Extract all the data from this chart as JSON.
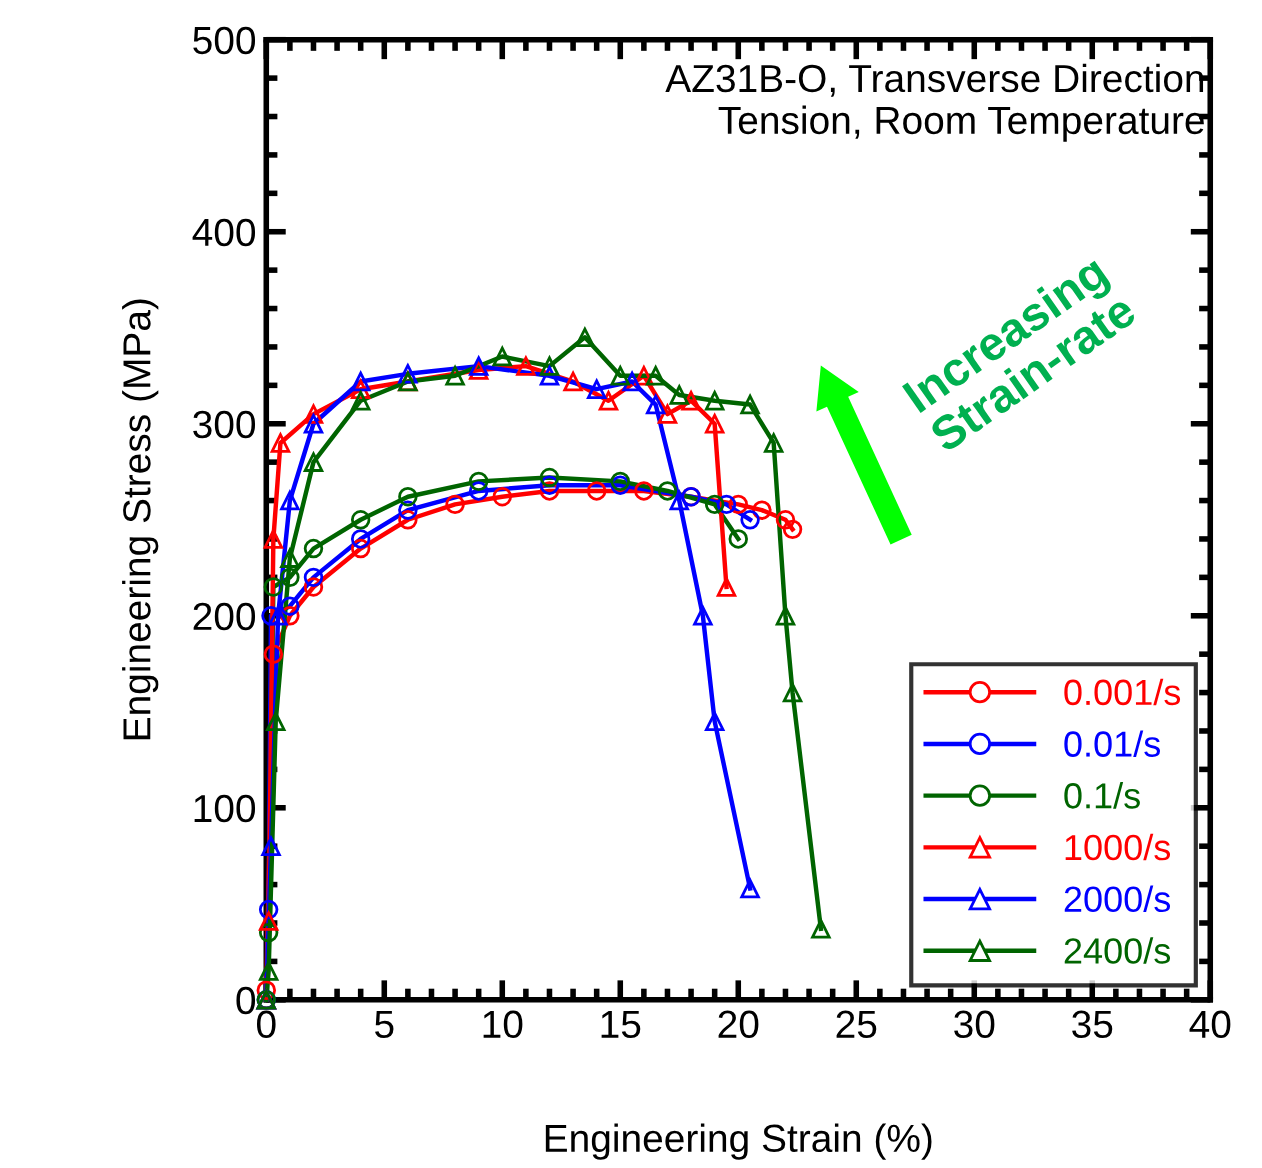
{
  "chart_data": {
    "type": "line",
    "xlabel": "Engineering Strain (%)",
    "ylabel": "Engineering Stress (MPa)",
    "xlim": [
      0,
      40
    ],
    "ylim": [
      0,
      500
    ],
    "xticks": [
      0,
      5,
      10,
      15,
      20,
      25,
      30,
      35,
      40
    ],
    "yticks": [
      0,
      100,
      200,
      300,
      400,
      500
    ],
    "grid": false,
    "legend": "bottom right",
    "annotations": [
      "AZ31B-O, Transverse Direction\nTension, Room Temperature",
      "Increasing\nStrain-rate"
    ],
    "series": [
      {
        "name": "0.001/s",
        "color": "#ff0000",
        "marker": "circle",
        "x": [
          0,
          0.3,
          1,
          2,
          4,
          6,
          8,
          10,
          12,
          14,
          16,
          18,
          20,
          21,
          22,
          22.3
        ],
        "values": [
          5,
          180,
          200,
          215,
          235,
          250,
          258,
          262,
          265,
          265,
          265,
          262,
          258,
          255,
          250,
          245
        ]
      },
      {
        "name": "0.01/s",
        "color": "#0000ff",
        "marker": "circle",
        "x": [
          0,
          0.1,
          0.2,
          1,
          2,
          4,
          6,
          9,
          12,
          15,
          18,
          19.5,
          20.5
        ],
        "values": [
          0,
          47,
          200,
          205,
          220,
          240,
          255,
          265,
          268,
          268,
          262,
          258,
          250
        ]
      },
      {
        "name": "0.1/s",
        "color": "#006400",
        "marker": "circle",
        "x": [
          0,
          0.1,
          0.3,
          1,
          2,
          4,
          6,
          9,
          12,
          15,
          17,
          19,
          20
        ],
        "values": [
          0,
          35,
          215,
          220,
          235,
          250,
          262,
          270,
          272,
          270,
          265,
          258,
          240
        ]
      },
      {
        "name": "1000/s",
        "color": "#ff0000",
        "marker": "triangle",
        "x": [
          0,
          0.1,
          0.3,
          0.6,
          2,
          4,
          6,
          9,
          11,
          13,
          14.5,
          16,
          17,
          18,
          19,
          19.5
        ],
        "values": [
          0,
          41,
          240,
          290,
          305,
          318,
          322,
          328,
          330,
          322,
          312,
          325,
          305,
          312,
          300,
          215
        ]
      },
      {
        "name": "2000/s",
        "color": "#0000ff",
        "marker": "triangle",
        "x": [
          0,
          0.2,
          0.5,
          1,
          2,
          4,
          6,
          9,
          12,
          14,
          15.5,
          16.5,
          17.5,
          18.5,
          19,
          20.5
        ],
        "values": [
          0,
          80,
          200,
          260,
          300,
          322,
          326,
          330,
          325,
          318,
          322,
          310,
          260,
          200,
          145,
          58
        ]
      },
      {
        "name": "2400/s",
        "color": "#006400",
        "marker": "triangle",
        "x": [
          0,
          0.1,
          0.4,
          1,
          2,
          4,
          6,
          8,
          10,
          12,
          13.5,
          15,
          16.5,
          17.5,
          19,
          20.5,
          21.5,
          22,
          22.3,
          23.5
        ],
        "values": [
          0,
          15,
          145,
          230,
          280,
          312,
          322,
          325,
          335,
          330,
          345,
          325,
          325,
          315,
          312,
          310,
          290,
          200,
          160,
          37
        ]
      }
    ]
  }
}
